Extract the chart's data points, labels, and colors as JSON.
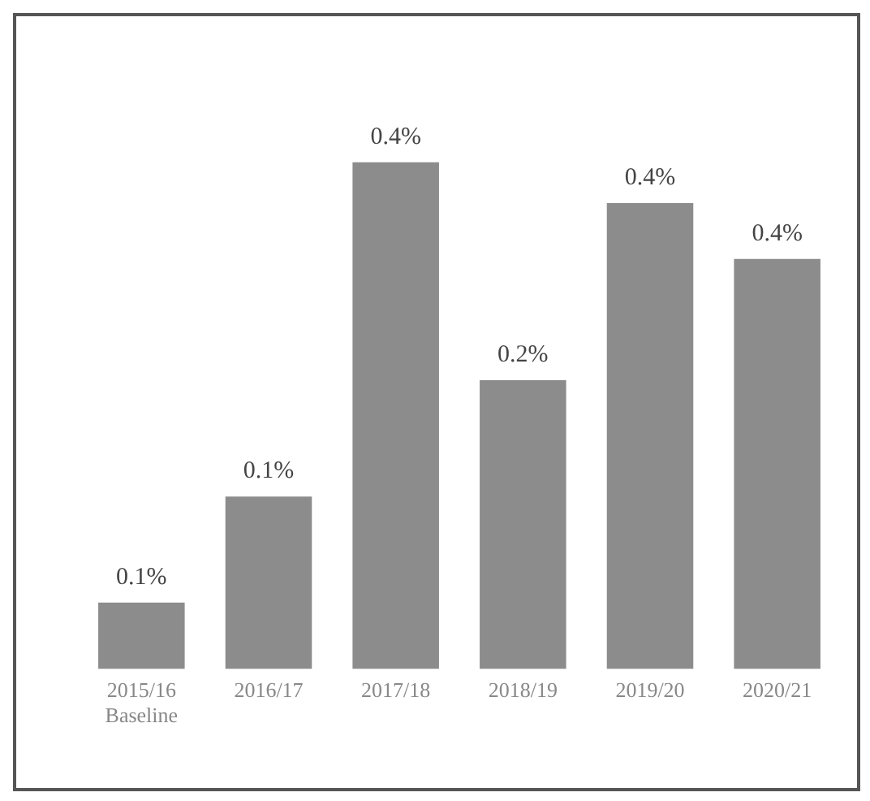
{
  "chart_data": {
    "type": "bar",
    "categories": [
      "2015/16\nBaseline",
      "2016/17",
      "2017/18",
      "2018/19",
      "2019/20",
      "2020/21"
    ],
    "values": [
      0.057,
      0.148,
      0.435,
      0.248,
      0.4,
      0.352
    ],
    "value_labels": [
      "0.1%",
      "0.1%",
      "0.4%",
      "0.2%",
      "0.4%",
      "0.4%"
    ],
    "color": "#8c8c8c",
    "grid": false,
    "legend": false
  }
}
